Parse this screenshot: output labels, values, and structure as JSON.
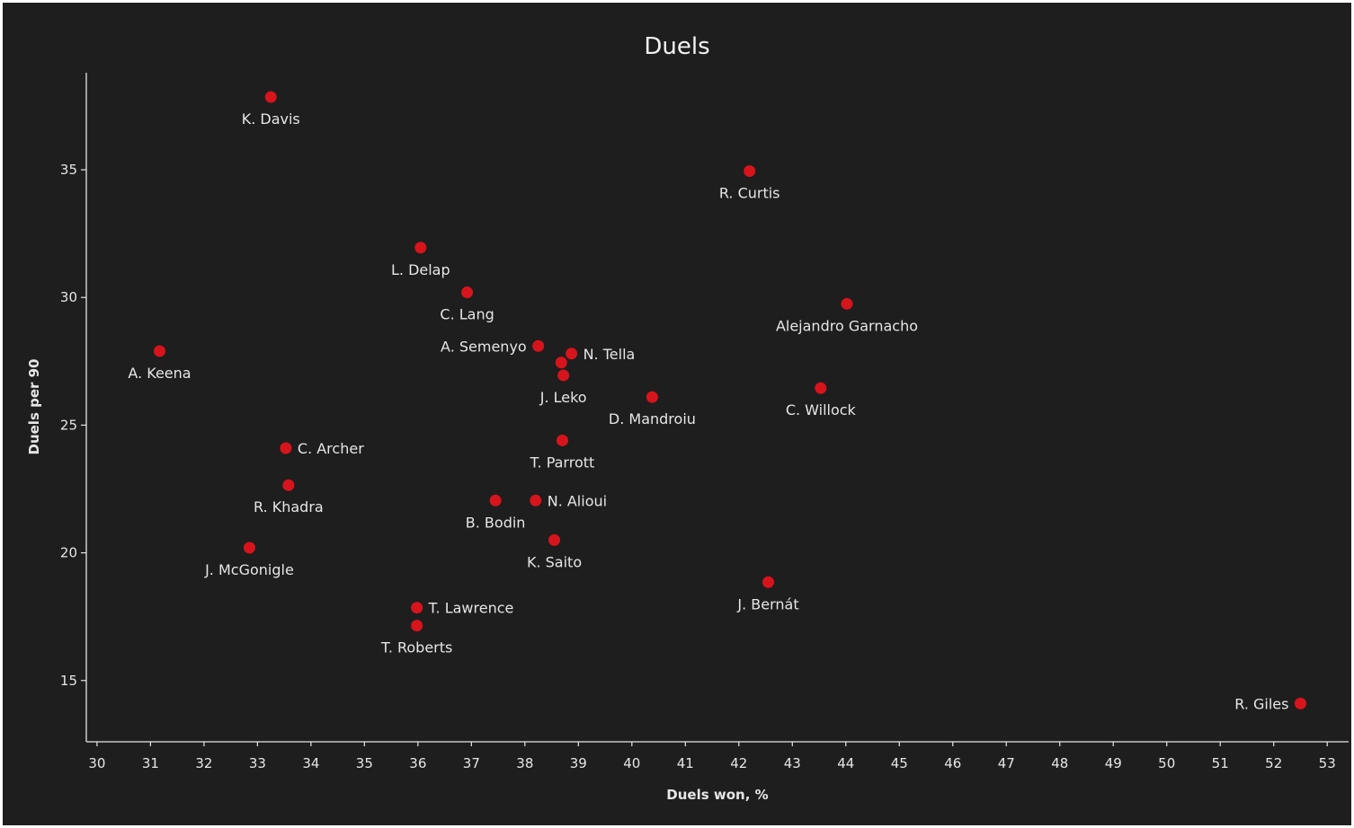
{
  "chart_data": {
    "type": "scatter",
    "title": "Duels",
    "xlabel": "Duels won, %",
    "ylabel": "Duels per 90",
    "xlim": [
      29.8,
      53.4
    ],
    "ylim": [
      12.6,
      38.8
    ],
    "xticks": [
      30,
      31,
      32,
      33,
      34,
      35,
      36,
      37,
      38,
      39,
      40,
      41,
      42,
      43,
      44,
      45,
      46,
      47,
      48,
      49,
      50,
      51,
      52,
      53
    ],
    "yticks": [
      15,
      20,
      25,
      30,
      35
    ],
    "grid": false,
    "marker_color": "#d7141c",
    "points": [
      {
        "label": "K. Davis",
        "x": 33.25,
        "y": 37.85,
        "label_pos": "below"
      },
      {
        "label": "R. Curtis",
        "x": 42.2,
        "y": 34.95,
        "label_pos": "below"
      },
      {
        "label": "L. Delap",
        "x": 36.05,
        "y": 31.95,
        "label_pos": "below"
      },
      {
        "label": "C. Lang",
        "x": 36.92,
        "y": 30.2,
        "label_pos": "below"
      },
      {
        "label": "Alejandro Garnacho",
        "x": 44.02,
        "y": 29.75,
        "label_pos": "below"
      },
      {
        "label": "A. Keena",
        "x": 31.17,
        "y": 27.9,
        "label_pos": "below"
      },
      {
        "label": "A. Semenyo",
        "x": 38.25,
        "y": 28.1,
        "label_pos": "left"
      },
      {
        "label": "N. Tella",
        "x": 38.87,
        "y": 27.8,
        "label_pos": "right"
      },
      {
        "label": "",
        "x": 38.68,
        "y": 27.45,
        "label_pos": "none"
      },
      {
        "label": "J. Leko",
        "x": 38.72,
        "y": 26.95,
        "label_pos": "below"
      },
      {
        "label": "D. Mandroiu",
        "x": 40.38,
        "y": 26.1,
        "label_pos": "below"
      },
      {
        "label": "C. Willock",
        "x": 43.53,
        "y": 26.45,
        "label_pos": "below"
      },
      {
        "label": "C. Archer",
        "x": 33.53,
        "y": 24.1,
        "label_pos": "right"
      },
      {
        "label": "T. Parrott",
        "x": 38.7,
        "y": 24.4,
        "label_pos": "below"
      },
      {
        "label": "R. Khadra",
        "x": 33.58,
        "y": 22.65,
        "label_pos": "below"
      },
      {
        "label": "B. Bodin",
        "x": 37.45,
        "y": 22.05,
        "label_pos": "below"
      },
      {
        "label": "N. Alioui",
        "x": 38.2,
        "y": 22.05,
        "label_pos": "right"
      },
      {
        "label": "K. Saito",
        "x": 38.55,
        "y": 20.5,
        "label_pos": "below"
      },
      {
        "label": "J. McGonigle",
        "x": 32.85,
        "y": 20.2,
        "label_pos": "below"
      },
      {
        "label": "J. Bernát",
        "x": 42.55,
        "y": 18.85,
        "label_pos": "below"
      },
      {
        "label": "T. Lawrence",
        "x": 35.98,
        "y": 17.85,
        "label_pos": "right"
      },
      {
        "label": "T. Roberts",
        "x": 35.98,
        "y": 17.15,
        "label_pos": "below"
      },
      {
        "label": "R. Giles",
        "x": 52.5,
        "y": 14.1,
        "label_pos": "left"
      }
    ]
  }
}
